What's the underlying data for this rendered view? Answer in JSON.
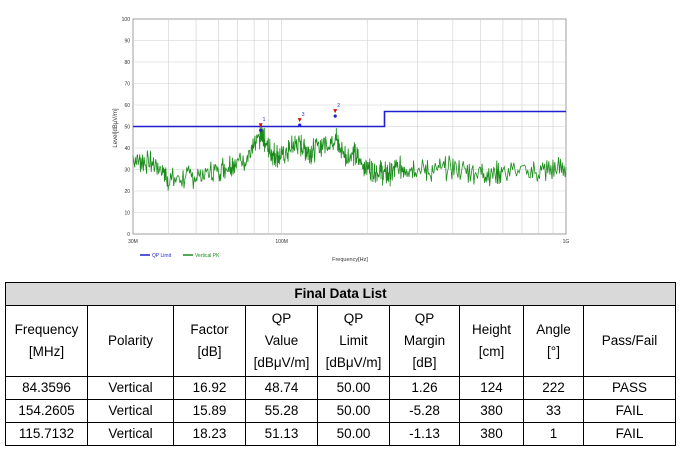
{
  "chart_data": {
    "type": "line",
    "xlabel": "Frequency[Hz]",
    "ylabel": "Level[dBµV/m]",
    "xscale": "log",
    "xlim": [
      30,
      1000
    ],
    "ylim": [
      0,
      100
    ],
    "grid": true,
    "y_ticks": [
      "0",
      "10",
      "20",
      "30",
      "40",
      "50",
      "60",
      "70",
      "80",
      "90",
      "100"
    ],
    "x_ticks": [
      {
        "value": 30,
        "label": "30M"
      },
      {
        "value": 100,
        "label": "100M"
      },
      {
        "value": 1000,
        "label": "1G"
      }
    ],
    "legend_position": "bottom-left",
    "series": [
      {
        "name": "QP Limit",
        "color": "#1f1fd0",
        "x": [
          30,
          230,
          230,
          1000
        ],
        "y": [
          50,
          50,
          57,
          57
        ]
      },
      {
        "name": "Vertical PK",
        "color": "#1a8c1a",
        "x": [
          30,
          32,
          35,
          38,
          40,
          45,
          50,
          55,
          60,
          65,
          70,
          75,
          80,
          84,
          86,
          88,
          92,
          95,
          100,
          105,
          110,
          115,
          120,
          125,
          130,
          140,
          150,
          155,
          160,
          170,
          180,
          190,
          200,
          210,
          220,
          230,
          240,
          250,
          270,
          300,
          330,
          360,
          400,
          450,
          500,
          550,
          600,
          700,
          800,
          900,
          1000
        ],
        "y": [
          35,
          34,
          33,
          30,
          25,
          26,
          27,
          28,
          30,
          32,
          34,
          35,
          40,
          45,
          46,
          42,
          38,
          37,
          36,
          38,
          41,
          42,
          40,
          38,
          39,
          42,
          43,
          45,
          40,
          36,
          37,
          33,
          31,
          30,
          29,
          28,
          28,
          30,
          31,
          31,
          29,
          30,
          31,
          29,
          29,
          28,
          29,
          29,
          29,
          30,
          31
        ]
      }
    ],
    "markers": [
      {
        "x": 84.3596,
        "y": 48.74,
        "label": "1"
      },
      {
        "x": 115.7132,
        "y": 51.13,
        "label": "3"
      },
      {
        "x": 154.2605,
        "y": 55.28,
        "label": "2"
      }
    ]
  },
  "table": {
    "title": "Final Data List",
    "headers": [
      [
        "Frequency",
        "[MHz]"
      ],
      [
        "Polarity"
      ],
      [
        "Factor",
        "[dB]"
      ],
      [
        "QP",
        "Value",
        "[dBμV/m]"
      ],
      [
        "QP",
        "Limit",
        "[dBμV/m]"
      ],
      [
        "QP",
        "Margin",
        "[dB]"
      ],
      [
        "Height",
        "[cm]"
      ],
      [
        "Angle",
        "[°]"
      ],
      [
        "Pass/Fail"
      ]
    ],
    "rows": [
      [
        "84.3596",
        "Vertical",
        "16.92",
        "48.74",
        "50.00",
        "1.26",
        "124",
        "222",
        "PASS"
      ],
      [
        "154.2605",
        "Vertical",
        "15.89",
        "55.28",
        "50.00",
        "-5.28",
        "380",
        "33",
        "FAIL"
      ],
      [
        "115.7132",
        "Vertical",
        "18.23",
        "51.13",
        "50.00",
        "-1.13",
        "380",
        "1",
        "FAIL"
      ]
    ]
  }
}
